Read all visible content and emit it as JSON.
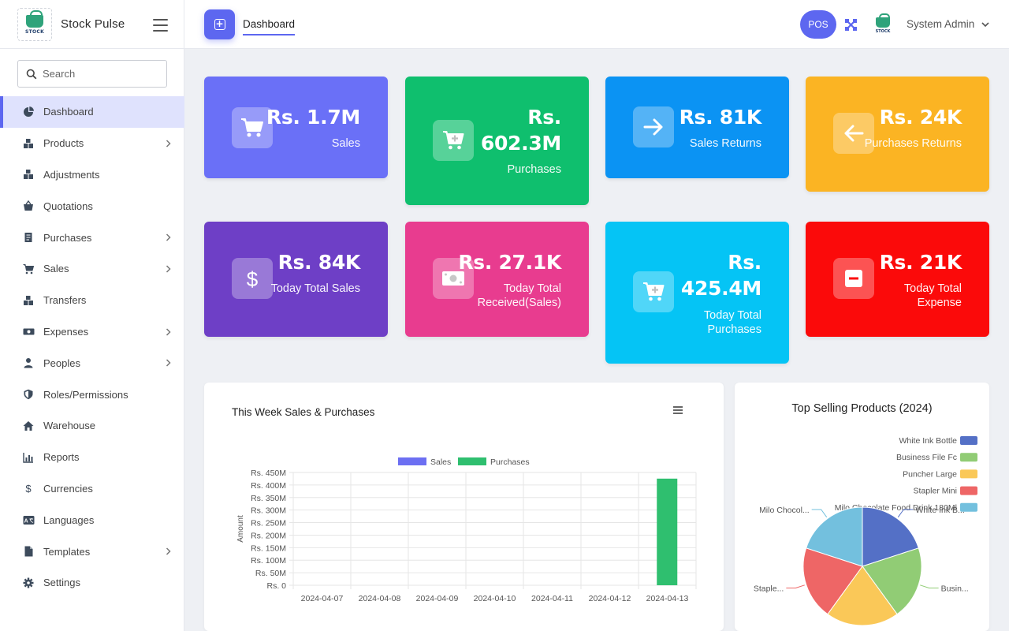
{
  "app": {
    "name": "Stock Pulse",
    "logo_text": "STOCK"
  },
  "topbar": {
    "tab_label": "Dashboard",
    "pos_label": "POS",
    "user_name": "System Admin"
  },
  "sidebar": {
    "search_placeholder": "Search",
    "items": [
      {
        "label": "Dashboard",
        "icon": "pie-icon",
        "active": true,
        "chevron": false
      },
      {
        "label": "Products",
        "icon": "boxes-icon",
        "chevron": true
      },
      {
        "label": "Adjustments",
        "icon": "boxes-icon",
        "chevron": false
      },
      {
        "label": "Quotations",
        "icon": "basket-icon",
        "chevron": false
      },
      {
        "label": "Purchases",
        "icon": "receipt-icon",
        "chevron": true
      },
      {
        "label": "Sales",
        "icon": "cart-icon",
        "chevron": true
      },
      {
        "label": "Transfers",
        "icon": "boxes-icon",
        "chevron": false
      },
      {
        "label": "Expenses",
        "icon": "money-icon",
        "chevron": true
      },
      {
        "label": "Peoples",
        "icon": "user-icon",
        "chevron": true
      },
      {
        "label": "Roles/Permissions",
        "icon": "shield-icon",
        "chevron": false
      },
      {
        "label": "Warehouse",
        "icon": "home-icon",
        "chevron": false
      },
      {
        "label": "Reports",
        "icon": "chart-icon",
        "chevron": false
      },
      {
        "label": "Currencies",
        "icon": "dollar-icon",
        "chevron": false
      },
      {
        "label": "Languages",
        "icon": "language-icon",
        "chevron": false
      },
      {
        "label": "Templates",
        "icon": "file-icon",
        "chevron": true
      },
      {
        "label": "Settings",
        "icon": "gear-icon",
        "chevron": false
      }
    ]
  },
  "cards": [
    {
      "value": "Rs. 1.7M",
      "label": "Sales",
      "color": "#6a70f7",
      "icon": "cart-icon"
    },
    {
      "value": "Rs. 602.3M",
      "label": "Purchases",
      "color": "#0fbf6e",
      "icon": "cart-plus-icon"
    },
    {
      "value": "Rs. 81K",
      "label": "Sales Returns",
      "color": "#0b93f3",
      "icon": "arrow-right-icon"
    },
    {
      "value": "Rs. 24K",
      "label": "Purchases Returns",
      "color": "#fbb423",
      "icon": "arrow-left-icon"
    },
    {
      "value": "Rs. 84K",
      "label": "Today Total Sales",
      "color": "#6e3fc6",
      "icon": "dollar-icon"
    },
    {
      "value": "Rs. 27.1K",
      "label": "Today Total Received(Sales)",
      "color": "#e83c8f",
      "icon": "money-icon"
    },
    {
      "value": "Rs. 425.4M",
      "label": "Today Total Purchases",
      "color": "#05c4f5",
      "icon": "cart-plus-icon"
    },
    {
      "value": "Rs. 21K",
      "label": "Today Total Expense",
      "color": "#fb0a0a",
      "icon": "minus-icon"
    }
  ],
  "weekly_chart_panel": {
    "title": "This Week Sales & Purchases"
  },
  "top_selling_panel": {
    "title": "Top Selling Products (2024)"
  },
  "chart_data": [
    {
      "type": "bar",
      "title": "This Week Sales & Purchases",
      "xlabel": "",
      "ylabel": "Amount",
      "categories": [
        "2024-04-07",
        "2024-04-08",
        "2024-04-09",
        "2024-04-10",
        "2024-04-11",
        "2024-04-12",
        "2024-04-13"
      ],
      "series": [
        {
          "name": "Sales",
          "color": "#6c6ff2",
          "values": [
            0,
            0,
            0,
            0,
            0,
            0,
            0
          ]
        },
        {
          "name": "Purchases",
          "color": "#2fbf6f",
          "values": [
            0,
            0,
            0,
            0,
            0,
            0,
            425.4
          ]
        }
      ],
      "ylim": [
        0,
        450
      ],
      "yticks": [
        "Rs. 0",
        "Rs. 50M",
        "Rs. 100M",
        "Rs. 150M",
        "Rs. 200M",
        "Rs. 250M",
        "Rs. 300M",
        "Rs. 350M",
        "Rs. 400M",
        "Rs. 450M"
      ],
      "legend": "top-center",
      "grid": true
    },
    {
      "type": "pie",
      "title": "Top Selling Products (2024)",
      "legend": "top-right",
      "slices": [
        {
          "name": "White Ink Bottle",
          "label": "White Ink B...",
          "value": 20,
          "color": "#5470c6"
        },
        {
          "name": "Business File Fc",
          "label": "Busin...",
          "value": 20,
          "color": "#91cc75"
        },
        {
          "name": "Puncher Large",
          "label": "",
          "value": 20,
          "color": "#fac858"
        },
        {
          "name": "Stapler Mini",
          "label": "Staple...",
          "value": 20,
          "color": "#ee6666"
        },
        {
          "name": "Milo Chocolate Food Drink 180Ml",
          "label": "Milo Chocol...",
          "value": 20,
          "color": "#73c0de"
        }
      ]
    }
  ]
}
